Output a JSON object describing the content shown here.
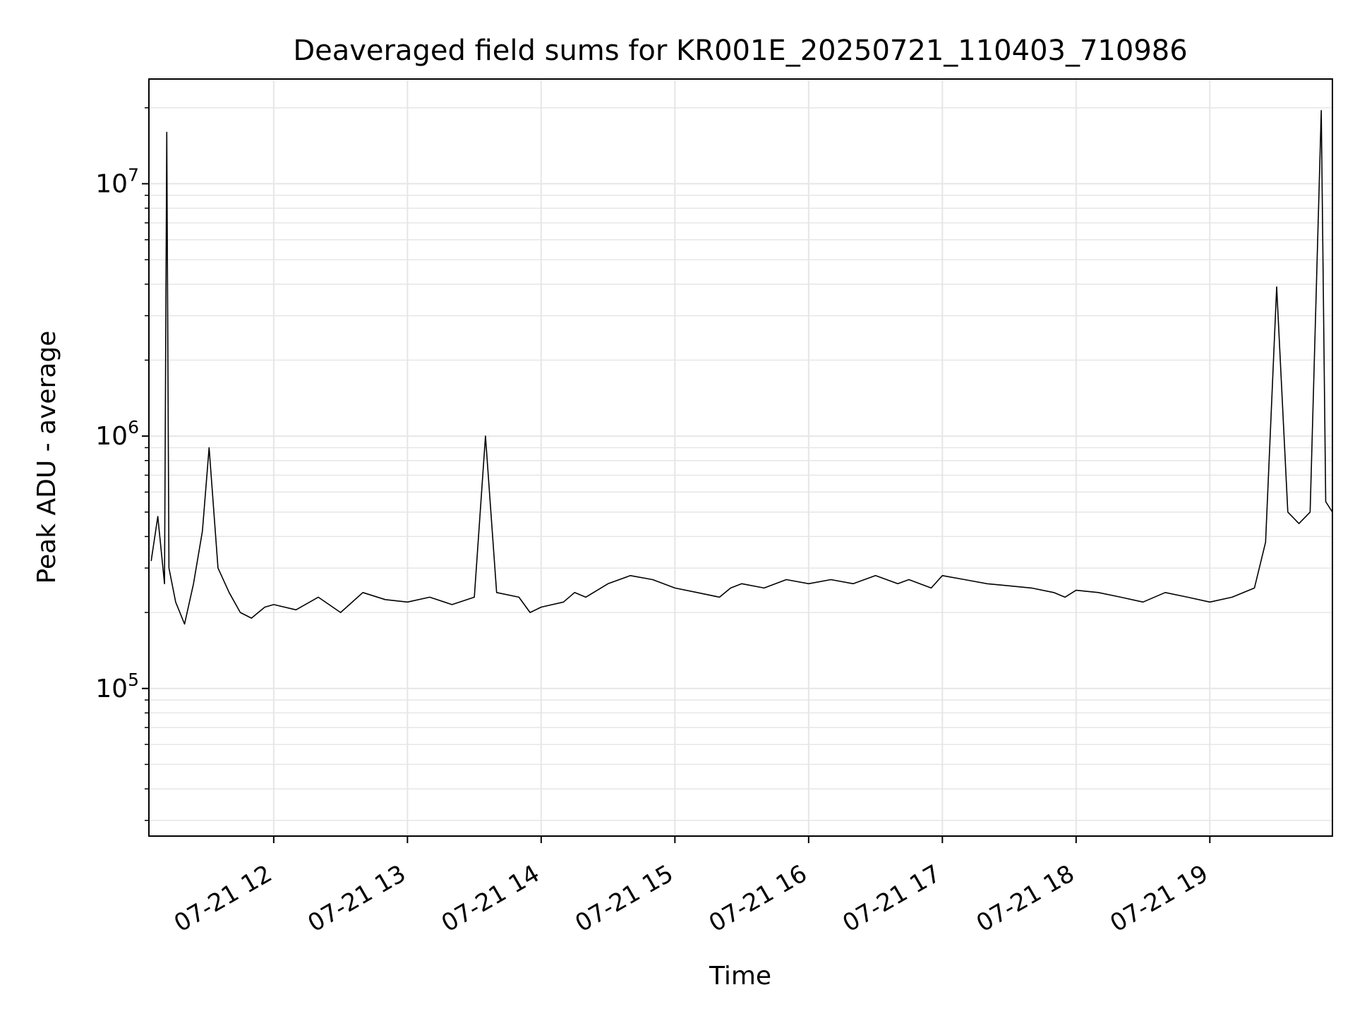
{
  "chart_data": {
    "type": "line",
    "title": "Deaveraged field sums for KR001E_20250721_110403_710986",
    "xlabel": "Time",
    "ylabel": "Peak ADU - average",
    "y_scale": "log",
    "xlim": [
      "2025-07-21T11:04:00",
      "2025-07-21T19:55:00"
    ],
    "ylim": [
      26000,
      26000000
    ],
    "grid": true,
    "line_color": "#000000",
    "grid_color": "#e6e6e6",
    "x_ticks": [
      {
        "time": "2025-07-21T12:00:00",
        "label": "07-21 12"
      },
      {
        "time": "2025-07-21T13:00:00",
        "label": "07-21 13"
      },
      {
        "time": "2025-07-21T14:00:00",
        "label": "07-21 14"
      },
      {
        "time": "2025-07-21T15:00:00",
        "label": "07-21 15"
      },
      {
        "time": "2025-07-21T16:00:00",
        "label": "07-21 16"
      },
      {
        "time": "2025-07-21T17:00:00",
        "label": "07-21 17"
      },
      {
        "time": "2025-07-21T18:00:00",
        "label": "07-21 18"
      },
      {
        "time": "2025-07-21T19:00:00",
        "label": "07-21 19"
      }
    ],
    "y_ticks": [
      {
        "value": 100000,
        "base": "10",
        "exp": "5"
      },
      {
        "value": 1000000,
        "base": "10",
        "exp": "6"
      },
      {
        "value": 10000000,
        "base": "10",
        "exp": "7"
      }
    ],
    "series": [
      {
        "x": [
          "2025-07-21T11:05:00",
          "2025-07-21T11:08:00",
          "2025-07-21T11:11:00",
          "2025-07-21T11:12:00",
          "2025-07-21T11:13:00",
          "2025-07-21T11:16:00",
          "2025-07-21T11:20:00",
          "2025-07-21T11:24:00",
          "2025-07-21T11:28:00",
          "2025-07-21T11:31:00",
          "2025-07-21T11:35:00",
          "2025-07-21T11:40:00",
          "2025-07-21T11:45:00",
          "2025-07-21T11:50:00",
          "2025-07-21T11:56:00",
          "2025-07-21T12:00:00",
          "2025-07-21T12:10:00",
          "2025-07-21T12:20:00",
          "2025-07-21T12:30:00",
          "2025-07-21T12:40:00",
          "2025-07-21T12:50:00",
          "2025-07-21T13:00:00",
          "2025-07-21T13:10:00",
          "2025-07-21T13:20:00",
          "2025-07-21T13:30:00",
          "2025-07-21T13:35:00",
          "2025-07-21T13:40:00",
          "2025-07-21T13:50:00",
          "2025-07-21T13:55:00",
          "2025-07-21T14:00:00",
          "2025-07-21T14:10:00",
          "2025-07-21T14:15:00",
          "2025-07-21T14:20:00",
          "2025-07-21T14:30:00",
          "2025-07-21T14:40:00",
          "2025-07-21T14:50:00",
          "2025-07-21T15:00:00",
          "2025-07-21T15:10:00",
          "2025-07-21T15:20:00",
          "2025-07-21T15:25:00",
          "2025-07-21T15:30:00",
          "2025-07-21T15:40:00",
          "2025-07-21T15:50:00",
          "2025-07-21T16:00:00",
          "2025-07-21T16:10:00",
          "2025-07-21T16:20:00",
          "2025-07-21T16:30:00",
          "2025-07-21T16:40:00",
          "2025-07-21T16:45:00",
          "2025-07-21T16:55:00",
          "2025-07-21T17:00:00",
          "2025-07-21T17:10:00",
          "2025-07-21T17:20:00",
          "2025-07-21T17:30:00",
          "2025-07-21T17:40:00",
          "2025-07-21T17:50:00",
          "2025-07-21T17:55:00",
          "2025-07-21T18:00:00",
          "2025-07-21T18:10:00",
          "2025-07-21T18:20:00",
          "2025-07-21T18:30:00",
          "2025-07-21T18:40:00",
          "2025-07-21T18:50:00",
          "2025-07-21T19:00:00",
          "2025-07-21T19:10:00",
          "2025-07-21T19:20:00",
          "2025-07-21T19:25:00",
          "2025-07-21T19:30:00",
          "2025-07-21T19:35:00",
          "2025-07-21T19:40:00",
          "2025-07-21T19:45:00",
          "2025-07-21T19:50:00",
          "2025-07-21T19:52:00",
          "2025-07-21T19:55:00"
        ],
        "y": [
          320000,
          480000,
          260000,
          16000000,
          300000,
          220000,
          180000,
          260000,
          420000,
          900000,
          300000,
          240000,
          200000,
          190000,
          210000,
          215000,
          205000,
          230000,
          200000,
          240000,
          225000,
          220000,
          230000,
          215000,
          230000,
          1000000,
          240000,
          230000,
          200000,
          210000,
          220000,
          240000,
          230000,
          260000,
          280000,
          270000,
          250000,
          240000,
          230000,
          250000,
          260000,
          250000,
          270000,
          260000,
          270000,
          260000,
          280000,
          260000,
          270000,
          250000,
          280000,
          270000,
          260000,
          255000,
          250000,
          240000,
          230000,
          245000,
          240000,
          230000,
          220000,
          240000,
          230000,
          220000,
          230000,
          250000,
          380000,
          3900000,
          500000,
          450000,
          500000,
          19500000,
          550000,
          500000
        ]
      }
    ]
  }
}
